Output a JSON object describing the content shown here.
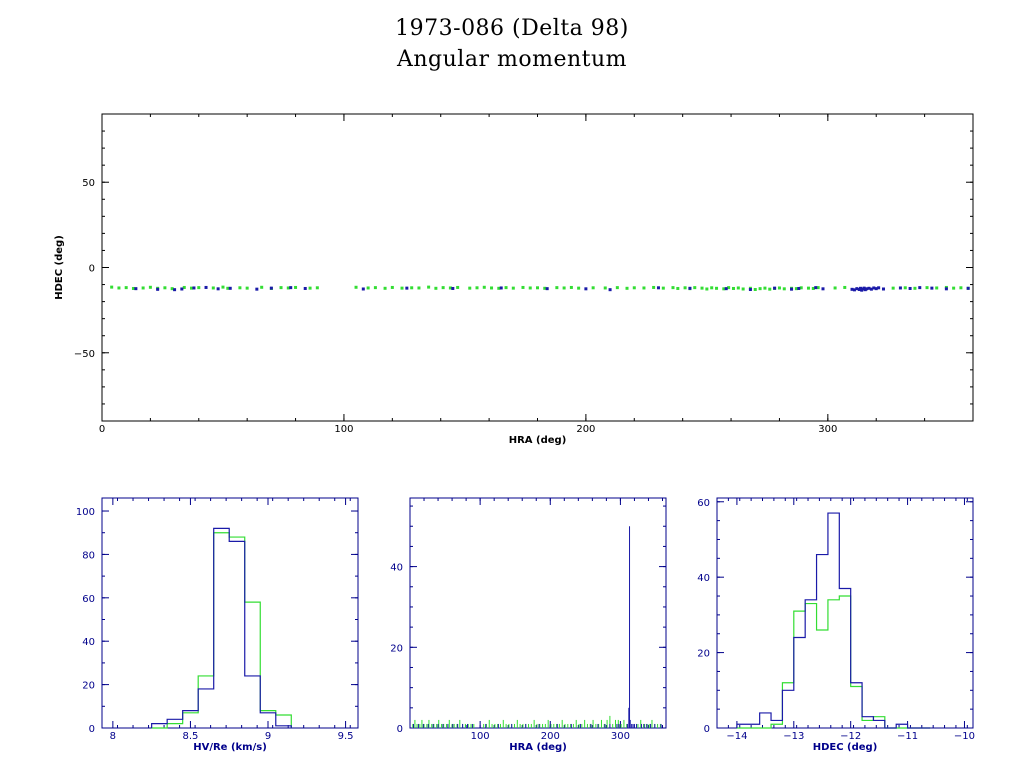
{
  "header": {
    "title_line1": "1973-086 (Delta 98)",
    "title_line2": "Angular momentum"
  },
  "colors": {
    "blue": "#1a1aa8",
    "green": "#33dd33",
    "axis": "#00008b",
    "black": "#000000"
  },
  "chart_data": [
    {
      "id": "scatter",
      "type": "scatter",
      "xlabel": "HRA (deg)",
      "ylabel": "HDEC (deg)",
      "xlim": [
        0,
        360
      ],
      "ylim": [
        -90,
        90
      ],
      "xticks": [
        0,
        100,
        200,
        300
      ],
      "yticks": [
        50,
        0,
        -50
      ],
      "ytick_labels": [
        "50",
        "0",
        "−50"
      ],
      "series": [
        {
          "color": "green",
          "x": [
            4,
            7,
            10,
            13,
            17,
            20,
            23,
            26,
            29,
            34,
            37,
            40,
            46,
            50,
            52,
            57,
            60,
            66,
            70,
            74,
            77,
            80,
            86,
            89,
            105,
            110,
            113,
            117,
            120,
            124,
            128,
            131,
            135,
            138,
            141,
            144,
            147,
            152,
            155,
            158,
            161,
            164,
            167,
            170,
            174,
            177,
            180,
            183,
            188,
            191,
            194,
            197,
            203,
            208,
            213,
            217,
            220,
            224,
            228,
            232,
            236,
            238,
            241,
            243,
            245,
            248,
            250,
            252,
            254,
            257,
            259,
            261,
            263,
            265,
            268,
            270,
            272,
            274,
            276,
            278,
            280,
            282,
            285,
            287,
            289,
            292,
            294,
            296,
            303,
            307,
            327,
            332,
            336,
            341,
            345,
            349,
            352,
            355,
            358
          ],
          "y": [
            -11.5,
            -12.0,
            -11.8,
            -12.3,
            -12.0,
            -11.6,
            -12.2,
            -11.9,
            -12.4,
            -11.7,
            -12.1,
            -11.8,
            -12.0,
            -11.5,
            -12.2,
            -11.9,
            -12.1,
            -11.6,
            -12.3,
            -11.8,
            -12.0,
            -11.7,
            -12.1,
            -11.9,
            -11.6,
            -12.0,
            -11.8,
            -12.2,
            -11.7,
            -12.1,
            -11.9,
            -12.0,
            -11.5,
            -12.2,
            -11.8,
            -12.0,
            -11.7,
            -12.1,
            -11.9,
            -11.6,
            -12.0,
            -12.2,
            -11.8,
            -12.1,
            -11.7,
            -12.0,
            -11.9,
            -12.2,
            -11.8,
            -12.0,
            -11.7,
            -12.1,
            -11.9,
            -12.0,
            -11.8,
            -12.2,
            -11.9,
            -12.0,
            -11.7,
            -12.1,
            -11.8,
            -12.3,
            -11.9,
            -12.4,
            -11.8,
            -12.1,
            -12.6,
            -11.9,
            -12.2,
            -12.5,
            -11.8,
            -12.3,
            -12.0,
            -12.6,
            -12.2,
            -12.9,
            -12.4,
            -12.1,
            -12.7,
            -12.3,
            -12.0,
            -12.5,
            -12.2,
            -12.4,
            -11.9,
            -12.1,
            -12.3,
            -11.8,
            -12.0,
            -11.7,
            -12.1,
            -11.9,
            -12.2,
            -11.8,
            -12.0,
            -11.7,
            -12.1,
            -11.9,
            -12.2
          ]
        },
        {
          "color": "blue",
          "x": [
            14,
            23,
            30,
            33,
            38,
            43,
            48,
            53,
            64,
            70,
            78,
            84,
            108,
            126,
            145,
            165,
            184,
            200,
            210,
            230,
            243,
            258,
            268,
            278,
            285,
            288,
            295,
            298,
            310,
            311,
            312,
            313,
            313.5,
            314,
            314.5,
            315,
            315.5,
            316,
            317,
            318,
            319,
            320,
            321,
            323,
            330,
            334,
            338,
            343,
            349,
            358
          ],
          "y": [
            -12.4,
            -12.8,
            -13.0,
            -12.6,
            -12.0,
            -11.7,
            -12.5,
            -12.2,
            -12.7,
            -12.1,
            -11.8,
            -12.3,
            -12.6,
            -12.1,
            -12.3,
            -12.0,
            -12.4,
            -12.5,
            -13.0,
            -11.9,
            -12.2,
            -12.4,
            -12.9,
            -12.1,
            -12.7,
            -12.3,
            -11.8,
            -12.5,
            -12.8,
            -13.1,
            -12.4,
            -12.9,
            -12.2,
            -13.3,
            -12.6,
            -12.1,
            -13.0,
            -12.5,
            -12.2,
            -12.7,
            -12.0,
            -12.4,
            -11.9,
            -12.6,
            -12.0,
            -12.3,
            -11.8,
            -12.1,
            -12.5,
            -12.2
          ]
        }
      ]
    },
    {
      "id": "hist1",
      "type": "bar",
      "xlabel": "HV/Re (km/s)",
      "xlim": [
        7.93,
        9.58
      ],
      "ylim": [
        0,
        106
      ],
      "xticks": [
        8,
        8.5,
        9,
        9.5
      ],
      "xtick_labels": [
        "8",
        "8.5",
        "9",
        "9.5"
      ],
      "yticks": [
        0,
        20,
        40,
        60,
        80,
        100
      ],
      "bin_edges": [
        8.25,
        8.35,
        8.45,
        8.55,
        8.65,
        8.75,
        8.85,
        8.95,
        9.05,
        9.15
      ],
      "series": [
        {
          "color": "blue",
          "values": [
            2,
            4,
            8,
            18,
            92,
            86,
            24,
            7,
            1
          ]
        },
        {
          "color": "green",
          "values": [
            0,
            2,
            7,
            24,
            90,
            88,
            58,
            8,
            6
          ]
        }
      ]
    },
    {
      "id": "hist2",
      "type": "bar",
      "xlabel": "HRA (deg)",
      "xlim": [
        0,
        365
      ],
      "ylim": [
        0,
        57
      ],
      "xticks": [
        100,
        200,
        300
      ],
      "yticks": [
        0,
        20,
        40
      ],
      "series": [
        {
          "color": "green",
          "bins": [
            4,
            7,
            10,
            14,
            17,
            20,
            24,
            27,
            31,
            34,
            38,
            41,
            45,
            48,
            52,
            56,
            60,
            63,
            67,
            71,
            75,
            79,
            83,
            87,
            91,
            105,
            109,
            113,
            117,
            121,
            125,
            129,
            133,
            137,
            141,
            145,
            149,
            153,
            157,
            161,
            165,
            169,
            173,
            177,
            181,
            185,
            189,
            193,
            197,
            201,
            205,
            209,
            213,
            217,
            221,
            225,
            229,
            233,
            237,
            241,
            245,
            249,
            253,
            257,
            261,
            265,
            269,
            273,
            277,
            281,
            285,
            289,
            293,
            297,
            301,
            305,
            309,
            325,
            329,
            333,
            337,
            341,
            345,
            349,
            353,
            357
          ],
          "values": [
            1,
            2,
            1,
            1,
            2,
            1,
            1,
            2,
            1,
            1,
            1,
            2,
            1,
            1,
            1,
            2,
            1,
            1,
            1,
            2,
            1,
            1,
            1,
            1,
            1,
            1,
            1,
            2,
            1,
            1,
            1,
            1,
            2,
            1,
            1,
            1,
            1,
            2,
            1,
            1,
            1,
            1,
            1,
            2,
            1,
            1,
            1,
            1,
            2,
            1,
            1,
            1,
            1,
            2,
            1,
            1,
            1,
            1,
            2,
            1,
            1,
            2,
            1,
            1,
            2,
            1,
            1,
            2,
            1,
            2,
            3,
            1,
            2,
            2,
            1,
            2,
            1,
            1,
            2,
            1,
            1,
            1,
            2,
            1,
            1,
            1
          ]
        },
        {
          "color": "blue",
          "bins": [
            5,
            12,
            19,
            26,
            33,
            40,
            47,
            54,
            61,
            68,
            75,
            82,
            89,
            108,
            126,
            145,
            165,
            184,
            200,
            210,
            230,
            243,
            258,
            268,
            278,
            285,
            295,
            298,
            310,
            312,
            313,
            314,
            316,
            318,
            320,
            323,
            330,
            334,
            338,
            343,
            349,
            358
          ],
          "values": [
            1,
            1,
            1,
            1,
            1,
            1,
            1,
            1,
            1,
            1,
            1,
            1,
            1,
            1,
            1,
            1,
            1,
            1,
            1,
            1,
            1,
            1,
            1,
            1,
            1,
            1,
            1,
            1,
            1,
            5,
            50,
            2,
            1,
            1,
            1,
            1,
            1,
            1,
            1,
            1,
            1,
            1
          ]
        }
      ]
    },
    {
      "id": "hist3",
      "type": "bar",
      "xlabel": "HDEC (deg)",
      "xlim": [
        -14.35,
        -9.85
      ],
      "ylim": [
        0,
        61
      ],
      "xticks": [
        -14,
        -13,
        -12,
        -11,
        -10
      ],
      "xtick_labels": [
        "−14",
        "−13",
        "−12",
        "−11",
        "−10"
      ],
      "yticks": [
        0,
        20,
        40,
        60
      ],
      "bin_edges": [
        -14.0,
        -13.8,
        -13.6,
        -13.4,
        -13.2,
        -13.0,
        -12.8,
        -12.6,
        -12.4,
        -12.2,
        -12.0,
        -11.8,
        -11.6,
        -11.4,
        -11.2,
        -11.0,
        -10.8,
        -10.6
      ],
      "series": [
        {
          "color": "blue",
          "values": [
            1,
            1,
            4,
            2,
            10,
            24,
            34,
            46,
            57,
            37,
            12,
            3,
            2,
            0,
            1,
            0,
            0
          ]
        },
        {
          "color": "green",
          "values": [
            0,
            0,
            0,
            1,
            12,
            31,
            33,
            26,
            34,
            35,
            11,
            2,
            3,
            0,
            0,
            0,
            0
          ]
        }
      ]
    }
  ]
}
